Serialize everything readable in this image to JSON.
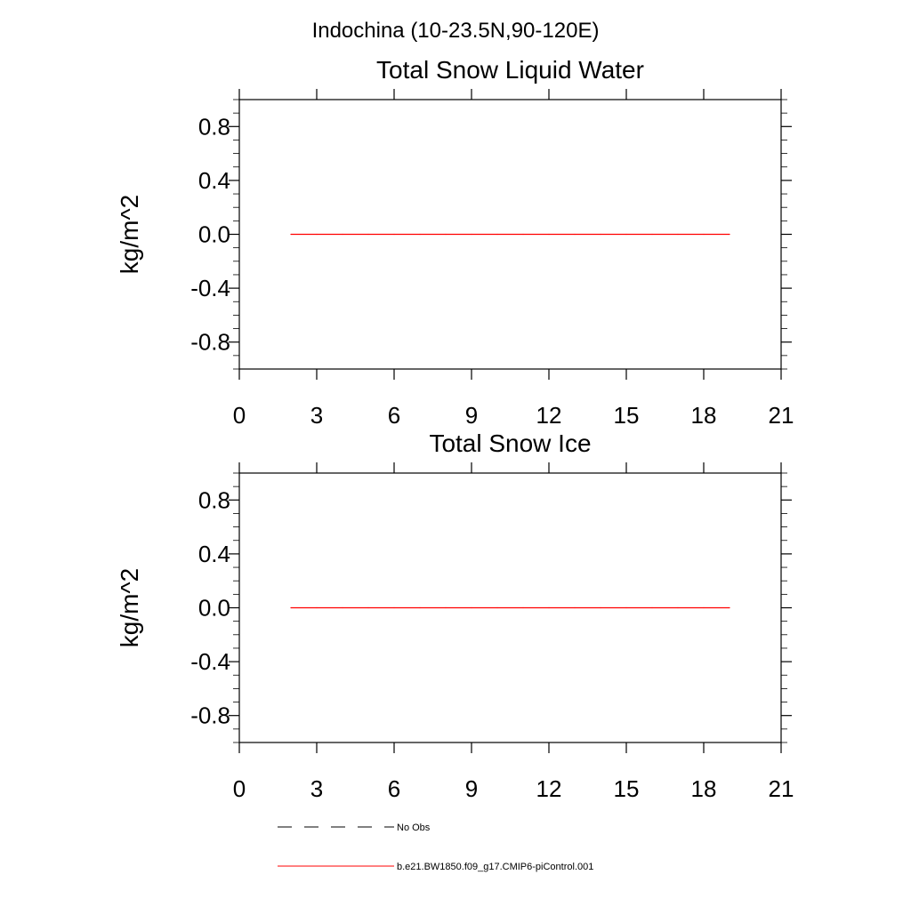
{
  "figure": {
    "title": "Indochina (10-23.5N,90-120E)"
  },
  "chart_data": [
    {
      "type": "line",
      "title": "Total Snow Liquid Water",
      "xlabel": "",
      "ylabel": "kg/m^2",
      "xlim": [
        0,
        21
      ],
      "ylim": [
        -1.0,
        1.0
      ],
      "xticks": [
        0,
        3,
        6,
        9,
        12,
        15,
        18,
        21
      ],
      "xtick_labels": [
        "0",
        "3",
        "6",
        "9",
        "12",
        "15",
        "18",
        "21"
      ],
      "yticks": [
        0.8,
        0.4,
        0.0,
        -0.4,
        -0.8
      ],
      "ytick_labels": [
        "0.8",
        "0.4",
        "0.0",
        "-0.4",
        "-0.8"
      ],
      "grid": false,
      "series": [
        {
          "name": "b.e21.BW1850.f09_g17.CMIP6-piControl.001",
          "color": "#ff0000",
          "x": [
            2,
            3,
            4,
            5,
            6,
            7,
            8,
            9,
            10,
            11,
            12,
            13,
            14,
            15,
            16,
            17,
            18,
            19
          ],
          "values": [
            0,
            0,
            0,
            0,
            0,
            0,
            0,
            0,
            0,
            0,
            0,
            0,
            0,
            0,
            0,
            0,
            0,
            0
          ]
        }
      ]
    },
    {
      "type": "line",
      "title": "Total Snow Ice",
      "xlabel": "",
      "ylabel": "kg/m^2",
      "xlim": [
        0,
        21
      ],
      "ylim": [
        -1.0,
        1.0
      ],
      "xticks": [
        0,
        3,
        6,
        9,
        12,
        15,
        18,
        21
      ],
      "xtick_labels": [
        "0",
        "3",
        "6",
        "9",
        "12",
        "15",
        "18",
        "21"
      ],
      "yticks": [
        0.8,
        0.4,
        0.0,
        -0.4,
        -0.8
      ],
      "ytick_labels": [
        "0.8",
        "0.4",
        "0.0",
        "-0.4",
        "-0.8"
      ],
      "grid": false,
      "series": [
        {
          "name": "b.e21.BW1850.f09_g17.CMIP6-piControl.001",
          "color": "#ff0000",
          "x": [
            2,
            3,
            4,
            5,
            6,
            7,
            8,
            9,
            10,
            11,
            12,
            13,
            14,
            15,
            16,
            17,
            18,
            19
          ],
          "values": [
            0,
            0,
            0,
            0,
            0,
            0,
            0,
            0,
            0,
            0,
            0,
            0,
            0,
            0,
            0,
            0,
            0,
            0
          ]
        }
      ]
    }
  ],
  "legend": {
    "placement": "bottom-left",
    "items": [
      {
        "label": "No Obs",
        "style": "dashed",
        "color": "#000000"
      },
      {
        "label": "b.e21.BW1850.f09_g17.CMIP6-piControl.001",
        "style": "solid",
        "color": "#ff0000"
      }
    ]
  }
}
